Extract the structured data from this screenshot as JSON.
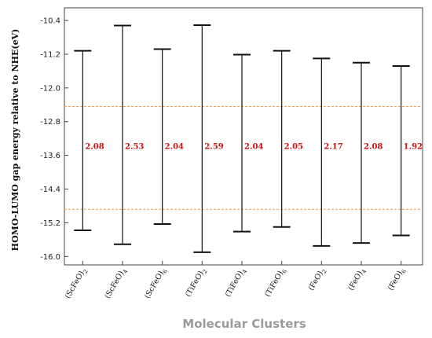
{
  "chart_data": {
    "type": "errorbar-range",
    "xlabel": "Molecular Clusters",
    "ylabel": "HOMO-LUMO gap energy relative to NHE(eV)",
    "ylim": [
      -16.2,
      -10.1
    ],
    "yticks": [
      "-10.4",
      "-11.2",
      "-12.0",
      "-12.8",
      "-13.6",
      "-14.4",
      "-15.2",
      "-16.0"
    ],
    "ytick_values": [
      -10.4,
      -11.2,
      -12.0,
      -12.8,
      -13.6,
      -14.4,
      -15.2,
      -16.0
    ],
    "reference_lines": [
      -12.44,
      -14.88
    ],
    "reference_color": "#f0a050",
    "label_color": "#cc1111",
    "grid": false,
    "categories": [
      {
        "base": "(ScFeO)",
        "sub": "2"
      },
      {
        "base": "(ScFeO)",
        "sub": "4"
      },
      {
        "base": "(ScFeO)",
        "sub": "6"
      },
      {
        "base": "(TiFeO)",
        "sub": "2"
      },
      {
        "base": "(TiFeO)",
        "sub": "4"
      },
      {
        "base": "(TiFeO)",
        "sub": "6"
      },
      {
        "base": "(FeO)",
        "sub": "2"
      },
      {
        "base": "(FeO)",
        "sub": "4"
      },
      {
        "base": "(FeO)",
        "sub": "6"
      }
    ],
    "homo": [
      -15.38,
      -15.71,
      -15.23,
      -15.9,
      -15.41,
      -15.3,
      -15.75,
      -15.68,
      -15.5
    ],
    "lumo": [
      -11.12,
      -10.52,
      -11.08,
      -10.51,
      -11.21,
      -11.12,
      -11.3,
      -11.4,
      -11.48
    ],
    "gaps": [
      "2.08",
      "2.53",
      "2.04",
      "2.59",
      "2.04",
      "2.05",
      "2.17",
      "2.08",
      "1.92"
    ]
  }
}
